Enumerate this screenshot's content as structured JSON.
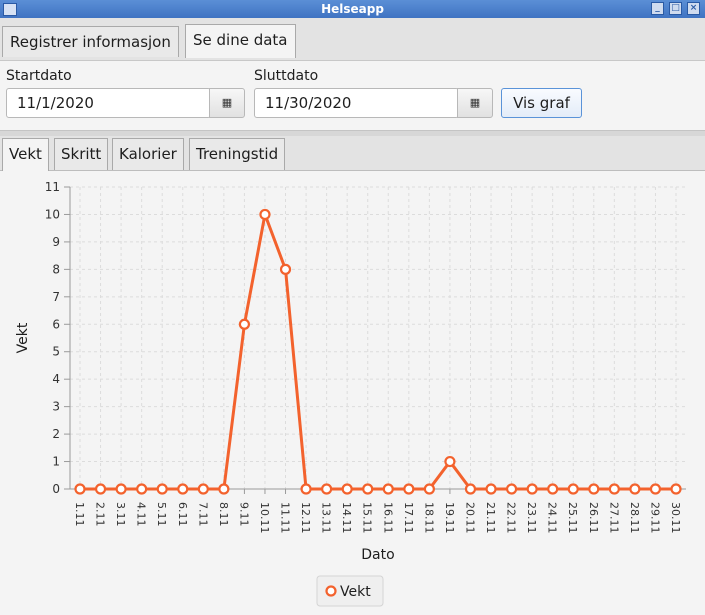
{
  "window": {
    "title": "Helseapp"
  },
  "main_tabs": [
    {
      "label": "Registrer informasjon"
    },
    {
      "label": "Se dine data"
    }
  ],
  "form": {
    "start_label": "Startdato",
    "start_value": "11/1/2020",
    "end_label": "Sluttdato",
    "end_value": "11/30/2020",
    "calendar_icon": "calendar-icon",
    "show_button": "Vis graf"
  },
  "sub_tabs": [
    {
      "label": "Vekt"
    },
    {
      "label": "Skritt"
    },
    {
      "label": "Kalorier"
    },
    {
      "label": "Treningstid"
    }
  ],
  "colors": {
    "series": "#f3622d",
    "accent": "#3f73c2"
  },
  "chart_data": {
    "type": "line",
    "xlabel": "Dato",
    "ylabel": "Vekt",
    "ylim": [
      0,
      11
    ],
    "y_ticks": [
      "0",
      "1",
      "2",
      "3",
      "4",
      "5",
      "6",
      "7",
      "8",
      "9",
      "10",
      "11"
    ],
    "grid": true,
    "legend_position": "bottom",
    "categories": [
      "1.11",
      "2.11",
      "3.11",
      "4.11",
      "5.11",
      "6.11",
      "7.11",
      "8.11",
      "9.11",
      "10.11",
      "11.11",
      "12.11",
      "13.11",
      "14.11",
      "15.11",
      "16.11",
      "17.11",
      "18.11",
      "19.11",
      "20.11",
      "21.11",
      "22.11",
      "23.11",
      "24.11",
      "25.11",
      "26.11",
      "27.11",
      "28.11",
      "29.11",
      "30.11"
    ],
    "series": [
      {
        "name": "Vekt",
        "values": [
          0,
          0,
          0,
          0,
          0,
          0,
          0,
          0,
          6,
          10,
          8,
          0,
          0,
          0,
          0,
          0,
          0,
          0,
          1,
          0,
          0,
          0,
          0,
          0,
          0,
          0,
          0,
          0,
          0,
          0
        ]
      }
    ]
  }
}
